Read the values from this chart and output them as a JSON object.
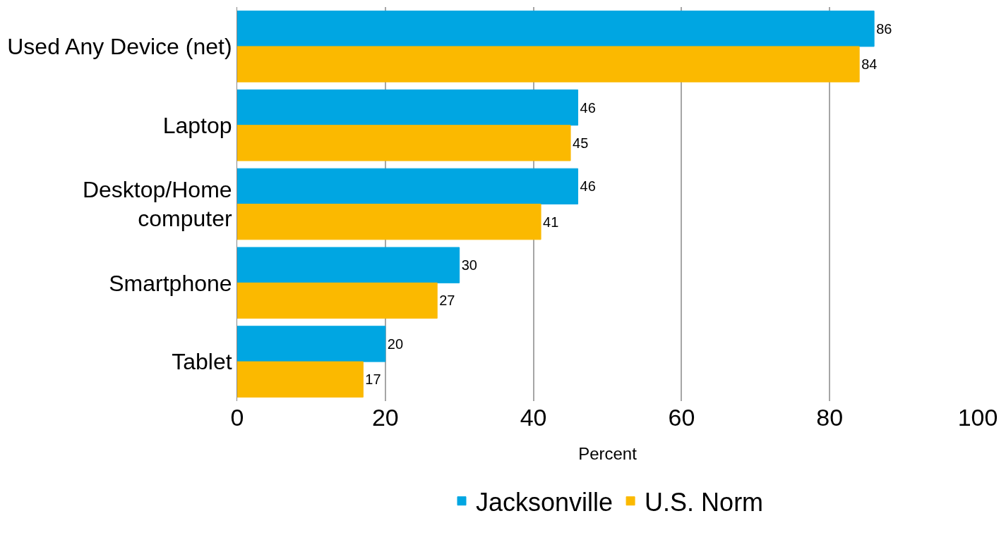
{
  "chart_data": {
    "type": "bar",
    "orientation": "horizontal",
    "xlabel": "Percent",
    "categories": [
      "Used Any Device (net)",
      "Laptop",
      "Desktop/Home\ncomputer",
      "Smartphone",
      "Tablet"
    ],
    "series": [
      {
        "name": "Jacksonville",
        "color": "#00a6e2",
        "values": [
          86,
          46,
          46,
          30,
          20
        ]
      },
      {
        "name": "U.S. Norm",
        "color": "#fbb900",
        "values": [
          84,
          45,
          41,
          27,
          17
        ]
      }
    ],
    "xlim": [
      0,
      100
    ],
    "xticks": [
      0,
      20,
      40,
      60,
      80,
      100
    ],
    "grid": "x",
    "legend": "bottom",
    "data_labels": true
  }
}
